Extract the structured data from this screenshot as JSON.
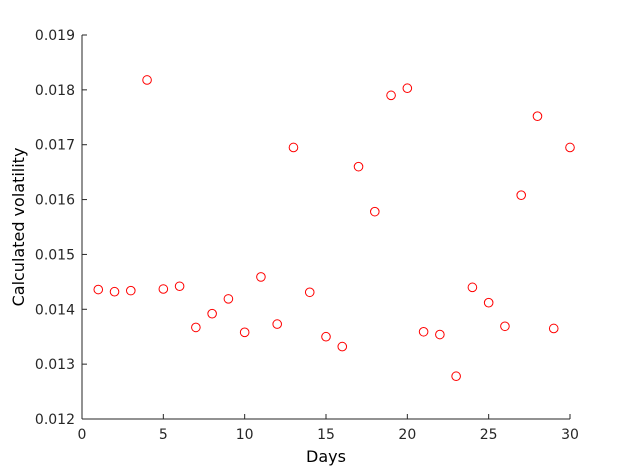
{
  "chart_data": {
    "type": "scatter",
    "xlabel": "Days",
    "ylabel": "Calculated volatility",
    "xlim": [
      0,
      30
    ],
    "ylim": [
      0.012,
      0.019
    ],
    "xticks": [
      "0",
      "5",
      "10",
      "15",
      "20",
      "25",
      "30"
    ],
    "yticks": [
      "0.012",
      "0.013",
      "0.014",
      "0.015",
      "0.016",
      "0.017",
      "0.018",
      "0.019"
    ],
    "grid": false,
    "marker": "open-circle",
    "marker_color": "#ff0000",
    "axis_color": "#262626",
    "series": [
      {
        "x": [
          1,
          2,
          3,
          4,
          5,
          6,
          7,
          8,
          9,
          10,
          11,
          12,
          13,
          14,
          15,
          16,
          17,
          18,
          19,
          20,
          21,
          22,
          23,
          24,
          25,
          26,
          27,
          28,
          29,
          30
        ],
        "y": [
          0.01436,
          0.01432,
          0.01434,
          0.01818,
          0.01437,
          0.01442,
          0.01367,
          0.01392,
          0.01419,
          0.01358,
          0.01459,
          0.01373,
          0.01695,
          0.01431,
          0.0135,
          0.01332,
          0.0166,
          0.01578,
          0.0179,
          0.01803,
          0.01359,
          0.01354,
          0.01278,
          0.0144,
          0.01412,
          0.01369,
          0.01608,
          0.01752,
          0.01365,
          0.01695
        ]
      }
    ]
  }
}
